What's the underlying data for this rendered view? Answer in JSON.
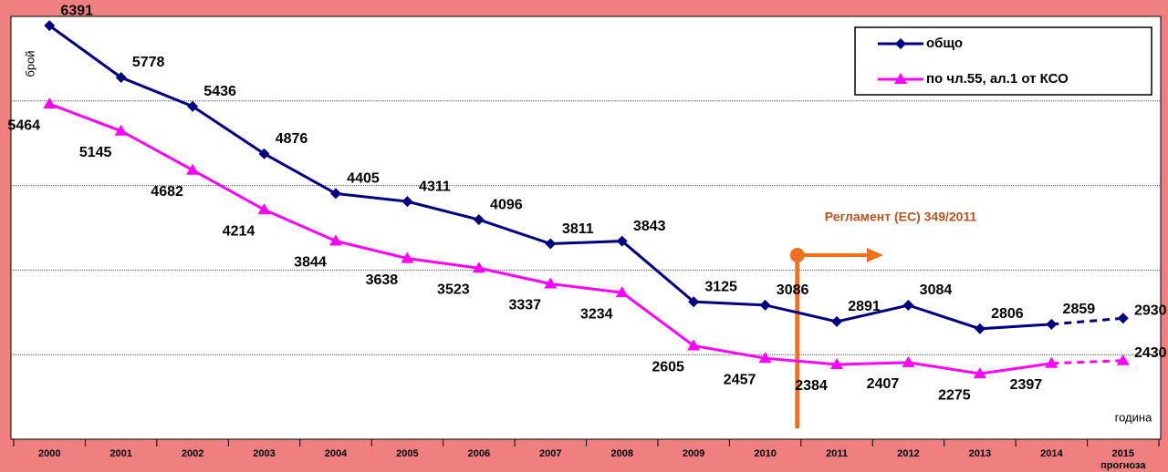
{
  "chart_data": {
    "type": "line",
    "y_label": "брой",
    "x_label": "година",
    "categories": [
      "2000",
      "2001",
      "2002",
      "2003",
      "2004",
      "2005",
      "2006",
      "2007",
      "2008",
      "2009",
      "2010",
      "2011",
      "2012",
      "2013",
      "2014",
      "2015"
    ],
    "category_note": "прогноза",
    "series": [
      {
        "name": "общо",
        "color": "#000080",
        "marker": "diamond",
        "values": [
          6391,
          5778,
          5436,
          4876,
          4405,
          4311,
          4096,
          3811,
          3843,
          3125,
          3086,
          2891,
          3084,
          2806,
          2859,
          2930
        ]
      },
      {
        "name": "по чл.55, ал.1 от КСО",
        "color": "#ff00ff",
        "marker": "triangle",
        "values": [
          5464,
          5145,
          4682,
          4214,
          3844,
          3638,
          3523,
          3337,
          3234,
          2605,
          2457,
          2384,
          2407,
          2275,
          2397,
          2430
        ]
      }
    ],
    "dashed_from_index": 14,
    "ylim": [
      1500,
      6500
    ],
    "gridlines": [
      2500,
      3500,
      4500,
      5500
    ],
    "annotation": {
      "text": "Регламент (ЕС) 349/2011",
      "color": "#c0501c",
      "line_color": "#f07020"
    },
    "legend": "top-right"
  }
}
